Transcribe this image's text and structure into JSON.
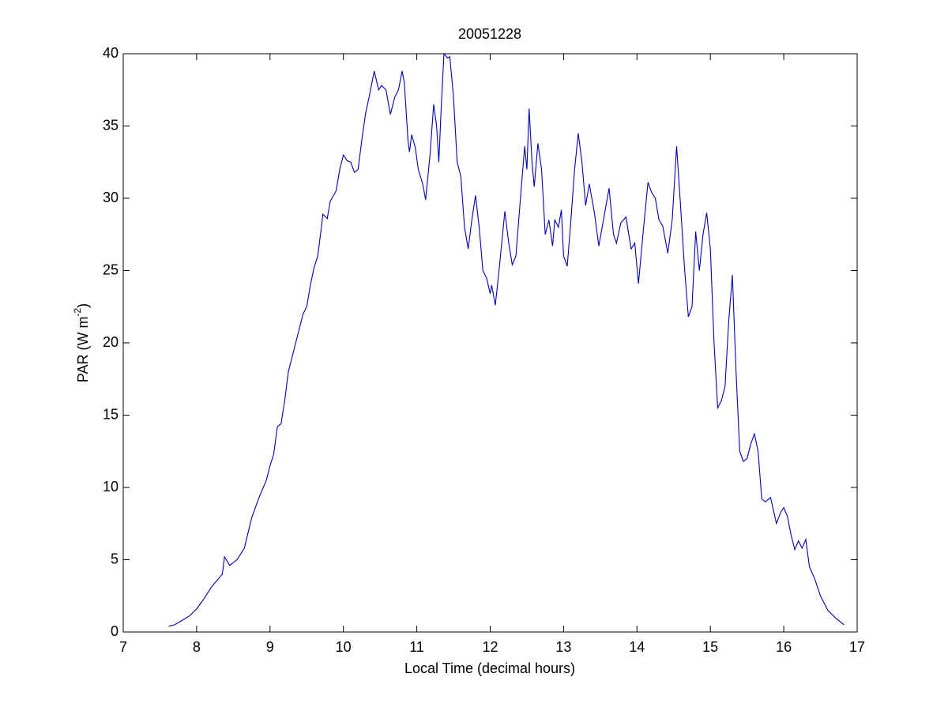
{
  "chart_data": {
    "type": "line",
    "title": "20051228",
    "x_label": "Local Time (decimal hours)",
    "y_label": [
      "PAR (W m",
      "-2",
      ")"
    ],
    "color": "#0000b4",
    "xlim": [
      7,
      17
    ],
    "xticks": [
      7,
      8,
      9,
      10,
      11,
      12,
      13,
      14,
      15,
      16,
      17
    ],
    "ylim": [
      0,
      40
    ],
    "yticks": [
      0,
      5,
      10,
      15,
      20,
      25,
      30,
      35,
      40
    ],
    "x": [
      7.62,
      7.7,
      7.8,
      7.9,
      8.0,
      8.1,
      8.2,
      8.3,
      8.35,
      8.38,
      8.45,
      8.55,
      8.65,
      8.75,
      8.85,
      8.95,
      9.0,
      9.05,
      9.1,
      9.15,
      9.2,
      9.25,
      9.3,
      9.4,
      9.45,
      9.5,
      9.55,
      9.6,
      9.65,
      9.7,
      9.72,
      9.78,
      9.82,
      9.9,
      9.95,
      10.0,
      10.05,
      10.1,
      10.15,
      10.2,
      10.25,
      10.3,
      10.35,
      10.42,
      10.48,
      10.52,
      10.58,
      10.64,
      10.7,
      10.75,
      10.8,
      10.83,
      10.88,
      10.9,
      10.93,
      10.98,
      11.02,
      11.08,
      11.12,
      11.18,
      11.23,
      11.27,
      11.3,
      11.33,
      11.37,
      11.42,
      11.45,
      11.5,
      11.55,
      11.6,
      11.65,
      11.7,
      11.75,
      11.8,
      11.85,
      11.9,
      11.95,
      12.0,
      12.02,
      12.07,
      12.12,
      12.2,
      12.25,
      12.3,
      12.35,
      12.42,
      12.47,
      12.5,
      12.53,
      12.57,
      12.6,
      12.65,
      12.7,
      12.75,
      12.8,
      12.85,
      12.88,
      12.93,
      12.97,
      13.0,
      13.05,
      13.1,
      13.15,
      13.2,
      13.25,
      13.3,
      13.35,
      13.42,
      13.48,
      13.55,
      13.62,
      13.68,
      13.72,
      13.78,
      13.85,
      13.92,
      13.97,
      14.02,
      14.1,
      14.15,
      14.2,
      14.25,
      14.3,
      14.35,
      14.42,
      14.48,
      14.54,
      14.6,
      14.65,
      14.7,
      14.75,
      14.8,
      14.85,
      14.9,
      14.95,
      15.0,
      15.05,
      15.1,
      15.15,
      15.2,
      15.25,
      15.3,
      15.35,
      15.4,
      15.45,
      15.5,
      15.55,
      15.6,
      15.65,
      15.7,
      15.75,
      15.82,
      15.9,
      15.96,
      16.0,
      16.05,
      16.1,
      16.15,
      16.2,
      16.25,
      16.3,
      16.35,
      16.42,
      16.5,
      16.6,
      16.7,
      16.82
    ],
    "values": [
      0.4,
      0.5,
      0.8,
      1.1,
      1.6,
      2.3,
      3.1,
      3.7,
      4.0,
      5.2,
      4.6,
      5.0,
      5.8,
      7.9,
      9.3,
      10.5,
      11.5,
      12.3,
      14.2,
      14.4,
      16.0,
      18.0,
      19.0,
      21.0,
      22.0,
      22.5,
      24.0,
      25.2,
      26.0,
      28.0,
      28.9,
      28.6,
      29.8,
      30.5,
      32.0,
      33.0,
      32.6,
      32.5,
      31.8,
      32.0,
      34.0,
      35.8,
      37.0,
      38.8,
      37.5,
      37.8,
      37.5,
      35.8,
      37.0,
      37.5,
      38.8,
      38.0,
      34.0,
      33.2,
      34.4,
      33.5,
      32.0,
      31.0,
      29.9,
      33.0,
      36.5,
      35.0,
      32.5,
      36.0,
      40.0,
      39.7,
      39.8,
      37.0,
      32.5,
      31.5,
      28.0,
      26.5,
      28.5,
      30.2,
      28.0,
      25.0,
      24.5,
      23.4,
      24.0,
      22.6,
      25.0,
      29.1,
      27.0,
      25.4,
      26.0,
      30.5,
      33.6,
      32.0,
      36.2,
      32.5,
      30.8,
      33.8,
      32.0,
      27.5,
      28.5,
      26.7,
      28.5,
      28.0,
      29.2,
      26.0,
      25.3,
      28.5,
      32.0,
      34.5,
      32.5,
      29.5,
      31.0,
      29.0,
      26.7,
      28.7,
      30.7,
      27.5,
      26.9,
      28.3,
      28.7,
      26.5,
      26.9,
      24.1,
      28.5,
      31.1,
      30.4,
      30.0,
      28.5,
      28.1,
      26.2,
      28.5,
      33.6,
      29.0,
      25.0,
      21.8,
      22.5,
      27.7,
      25.0,
      27.5,
      29.0,
      26.5,
      20.0,
      15.5,
      16.0,
      17.0,
      21.5,
      24.7,
      18.0,
      12.5,
      11.8,
      12.0,
      13.0,
      13.7,
      12.5,
      9.2,
      9.0,
      9.3,
      7.5,
      8.3,
      8.6,
      8.0,
      6.7,
      5.7,
      6.3,
      5.8,
      6.4,
      4.5,
      3.7,
      2.5,
      1.5,
      1.0,
      0.5
    ]
  }
}
